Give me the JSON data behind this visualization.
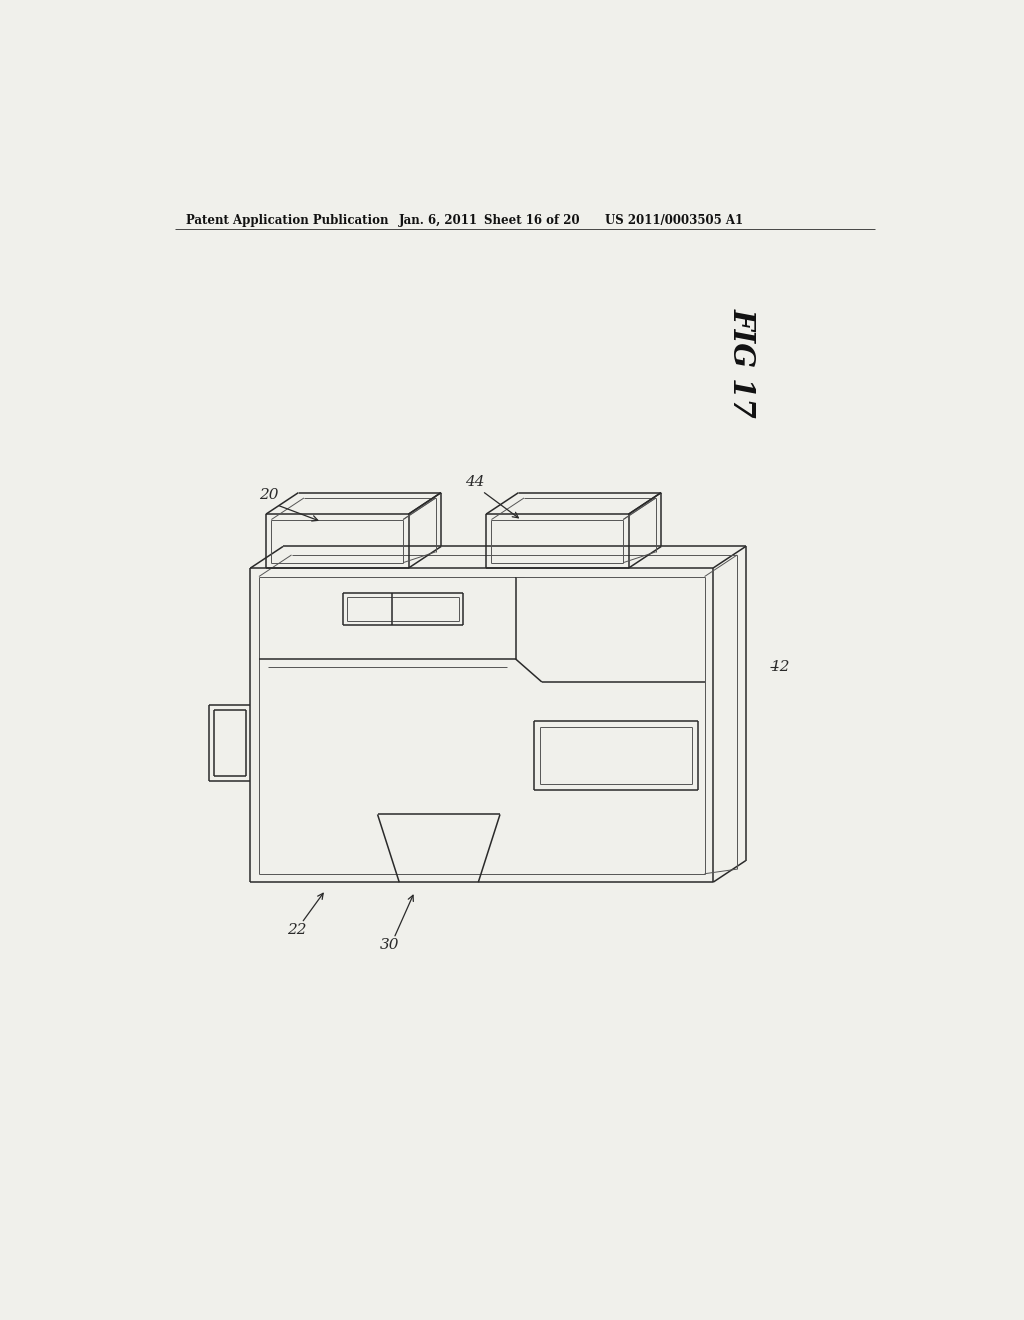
{
  "bg_color": "#f0f0eb",
  "header1": "Patent Application Publication",
  "header2": "Jan. 6, 2011",
  "header3": "Sheet 16 of 20",
  "header4": "US 2011/0003505 A1",
  "fig_label": "FIG 17",
  "lbl_20": "20",
  "lbl_44": "44",
  "lbl_12": "12",
  "lbl_22": "22",
  "lbl_30": "30"
}
